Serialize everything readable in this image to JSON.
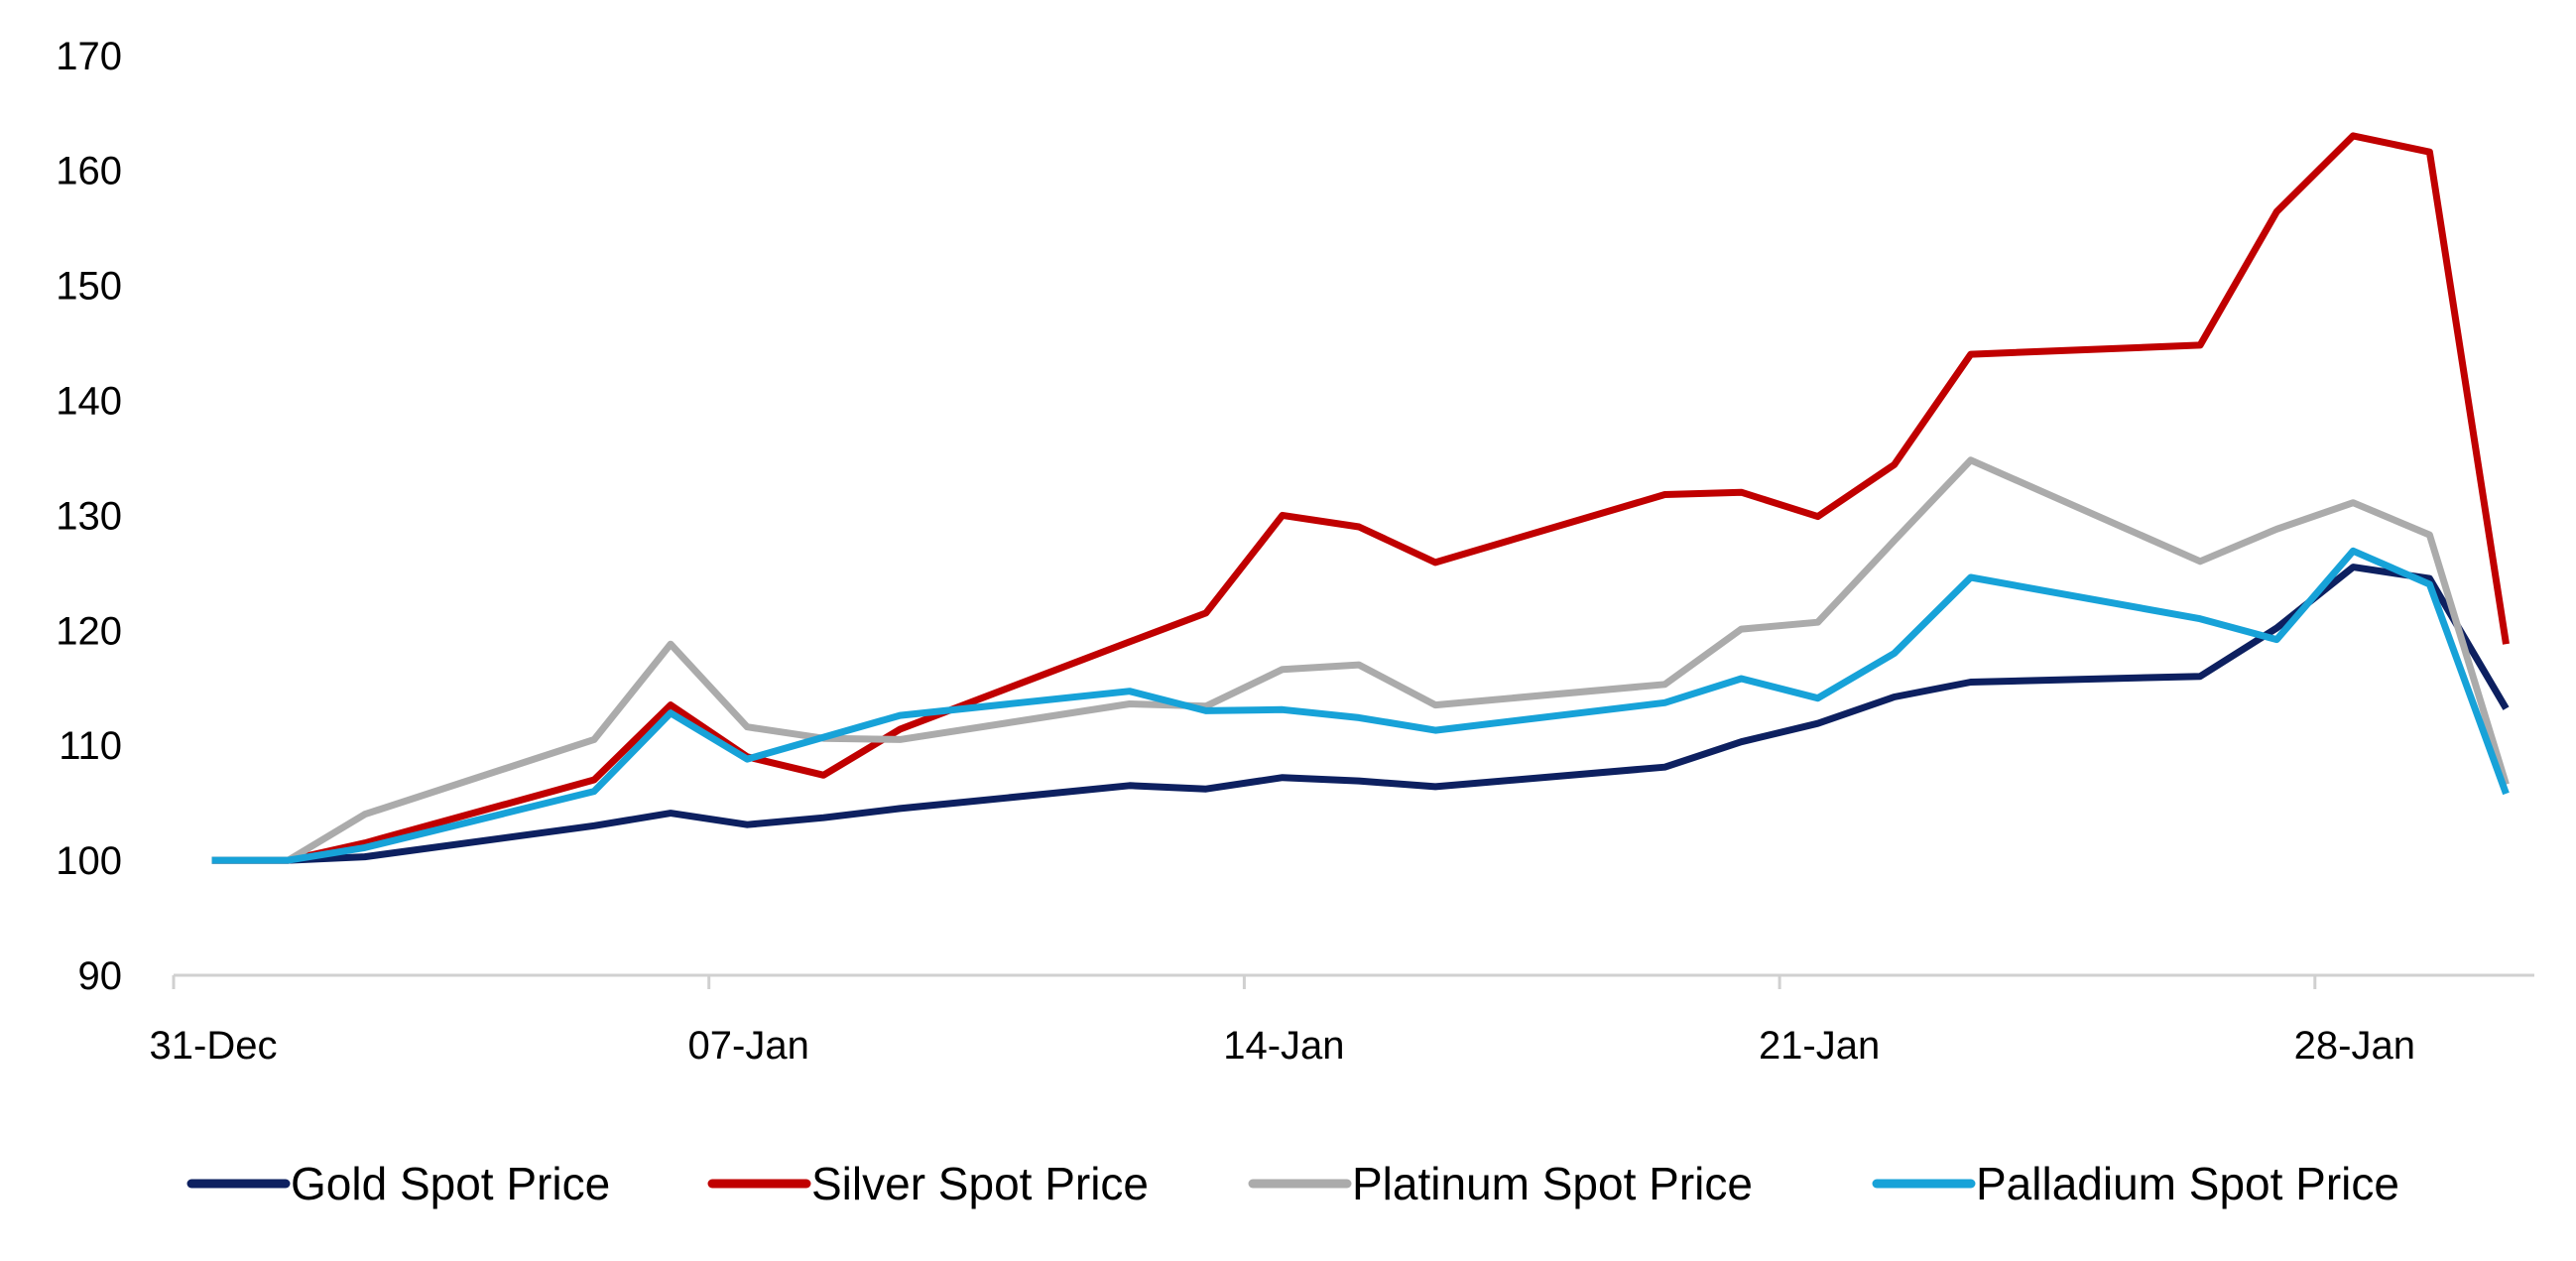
{
  "chart_data": {
    "type": "line",
    "title": "",
    "xlabel": "",
    "ylabel": "",
    "ylim": [
      90,
      170
    ],
    "yticks": [
      90,
      100,
      110,
      120,
      130,
      140,
      150,
      160,
      170
    ],
    "xlim": [
      0,
      31
    ],
    "xtick_labels": [
      {
        "x": 0,
        "label": "31-Dec"
      },
      {
        "x": 7,
        "label": "07-Jan"
      },
      {
        "x": 14,
        "label": "14-Jan"
      },
      {
        "x": 21,
        "label": "21-Jan"
      },
      {
        "x": 28,
        "label": "28-Jan"
      }
    ],
    "x": [
      0.5,
      1.5,
      2.5,
      5.5,
      6.5,
      7.5,
      8.5,
      9.5,
      12.5,
      13.5,
      14.5,
      15.5,
      16.5,
      19.5,
      20.5,
      21.5,
      22.5,
      23.5,
      26.5,
      27.5,
      28.5,
      29.5,
      30.5
    ],
    "series": [
      {
        "name": "Gold Spot Price",
        "color": "#0d2060",
        "values": [
          100,
          100,
          100.3,
          103,
          104.1,
          103.1,
          103.7,
          104.5,
          106.5,
          106.2,
          107.2,
          106.9,
          106.4,
          108.1,
          110.3,
          111.9,
          114.2,
          115.5,
          116,
          120.2,
          125.5,
          124.5,
          113.2
        ]
      },
      {
        "name": "Silver Spot Price",
        "color": "#c00000",
        "values": [
          100,
          100,
          101.5,
          107,
          113.5,
          109,
          107.4,
          111.4,
          119,
          121.5,
          130,
          129,
          125.9,
          131.8,
          132,
          129.9,
          134.4,
          144,
          144.8,
          156.4,
          163,
          161.6,
          118.8
        ]
      },
      {
        "name": "Platinum Spot Price",
        "color": "#ababab",
        "values": [
          100,
          100,
          104,
          110.5,
          118.8,
          111.6,
          110.6,
          110.5,
          113.6,
          113.4,
          116.6,
          117,
          113.5,
          115.3,
          120.1,
          120.7,
          127.8,
          134.8,
          126,
          128.8,
          131.1,
          128.3,
          106.6
        ]
      },
      {
        "name": "Palladium Spot Price",
        "color": "#17a2d8",
        "values": [
          100,
          100,
          101.1,
          106,
          112.8,
          108.8,
          110.7,
          112.6,
          114.7,
          113,
          113.1,
          112.4,
          111.3,
          113.7,
          115.8,
          114.1,
          118,
          124.6,
          121,
          119.2,
          126.9,
          124,
          105.8
        ]
      }
    ],
    "legend_position": "bottom"
  }
}
